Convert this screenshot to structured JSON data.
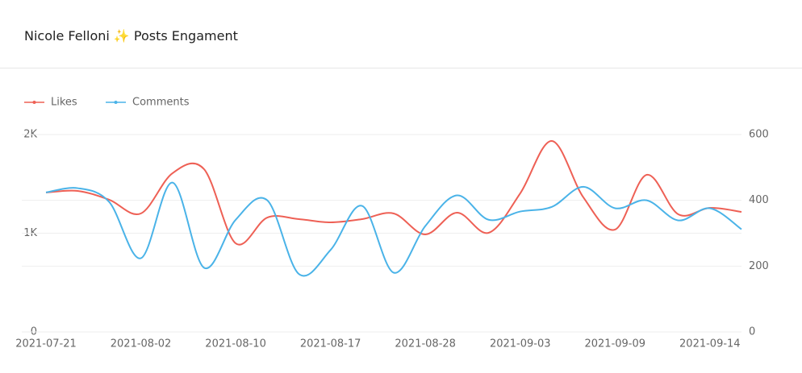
{
  "chart_data": {
    "type": "line",
    "title": "Nicole Felloni ✨ Posts Engament",
    "categories": [
      "2021-07-21",
      null,
      null,
      "2021-08-02",
      null,
      null,
      "2021-08-10",
      null,
      null,
      "2021-08-17",
      null,
      null,
      "2021-08-28",
      null,
      null,
      "2021-09-03",
      null,
      null,
      "2021-09-09",
      null,
      null,
      "2021-09-14",
      null
    ],
    "series": [
      {
        "name": "Likes",
        "color": "#ee6055",
        "values": [
          1412,
          1429,
          1339,
          1200,
          1608,
          1649,
          898,
          1159,
          1143,
          1110,
          1143,
          1200,
          988,
          1208,
          1004,
          1404,
          1935,
          1363,
          1037,
          1592,
          1192,
          1257,
          1216
        ]
      },
      {
        "name": "Comments",
        "color": "#4ab3e8",
        "axis": "y2",
        "values": [
          424,
          437,
          395,
          224,
          454,
          195,
          341,
          400,
          176,
          249,
          383,
          180,
          322,
          415,
          341,
          366,
          380,
          441,
          376,
          400,
          339,
          376,
          312
        ]
      }
    ],
    "ylim": [
      0,
      2000
    ],
    "yticks": [
      0,
      {
        "value": 1000,
        "label": "1K"
      },
      {
        "value": 2000,
        "label": "2K"
      }
    ],
    "y2lim": [
      0,
      600
    ],
    "y2ticks": [
      0,
      200,
      400,
      600
    ],
    "grid": true,
    "legend": "top-left"
  }
}
